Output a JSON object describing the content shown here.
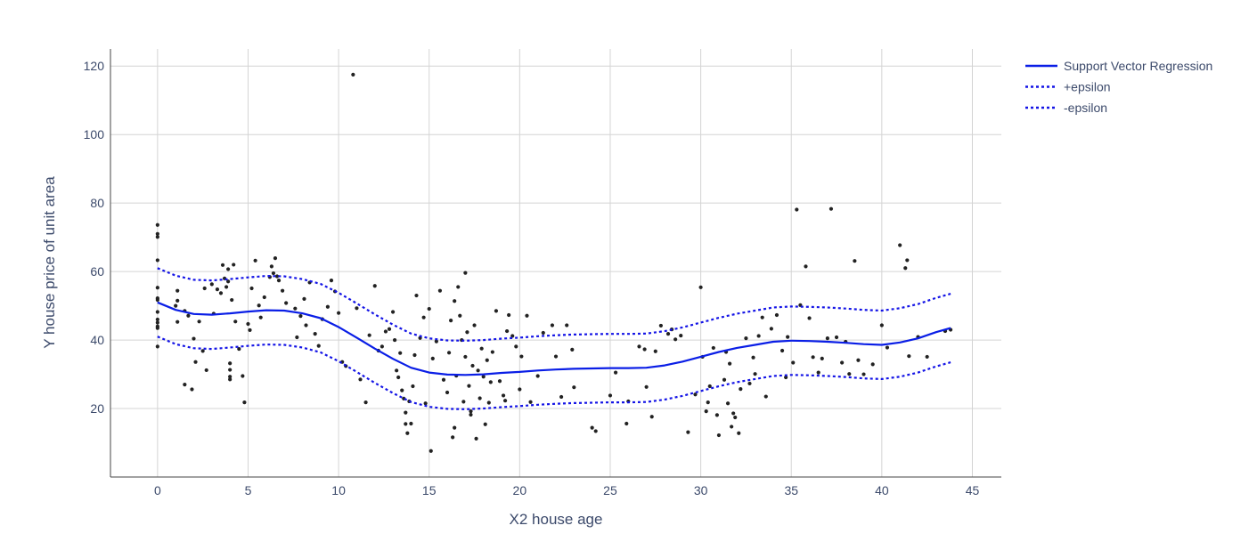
{
  "chart_data": {
    "type": "scatter",
    "xlabel": "X2 house age",
    "ylabel": "Y house price of unit area",
    "xlim": [
      -2.6,
      46.6
    ],
    "ylim": [
      0,
      125
    ],
    "xticks": [
      0,
      5,
      10,
      15,
      20,
      25,
      30,
      35,
      40,
      45
    ],
    "yticks": [
      20,
      40,
      60,
      80,
      100,
      120
    ],
    "grid": true,
    "legend_position": "top-right",
    "colors": {
      "points": "#222222",
      "svr": "#0a1ee6",
      "epsilon": "#1414e6",
      "grid": "#d4d4d4"
    },
    "legend": [
      {
        "label": "Support Vector Regression",
        "style": "solid"
      },
      {
        "label": "+epsilon",
        "style": "dotted"
      },
      {
        "label": "-epsilon",
        "style": "dotted"
      }
    ],
    "series": [
      {
        "name": "Support Vector Regression",
        "x": [
          0,
          1,
          2,
          3,
          4,
          5,
          6,
          7,
          8,
          9,
          10,
          11,
          12,
          13,
          14,
          15,
          16,
          17,
          18,
          19,
          20,
          21,
          22,
          23,
          24,
          25,
          26,
          27,
          28,
          29,
          30,
          31,
          32,
          33,
          34,
          35,
          36,
          37,
          38,
          39,
          40,
          41,
          42,
          43,
          43.8
        ],
        "y": [
          51,
          48.8,
          47.6,
          47.4,
          47.8,
          48.3,
          48.7,
          48.6,
          47.8,
          46.4,
          43.8,
          40.7,
          37.5,
          34.5,
          31.9,
          30.5,
          29.9,
          29.8,
          30,
          30.4,
          30.7,
          31.1,
          31.4,
          31.6,
          31.7,
          31.8,
          31.8,
          31.9,
          32.6,
          33.7,
          35.1,
          36.5,
          37.7,
          38.6,
          39.5,
          39.8,
          39.7,
          39.5,
          39.2,
          38.8,
          38.6,
          39.3,
          40.5,
          42.3,
          43.5
        ]
      },
      {
        "name": "+epsilon",
        "x": [
          0,
          1,
          2,
          3,
          4,
          5,
          6,
          7,
          8,
          9,
          10,
          11,
          12,
          13,
          14,
          15,
          16,
          17,
          18,
          19,
          20,
          21,
          22,
          23,
          24,
          25,
          26,
          27,
          28,
          29,
          30,
          31,
          32,
          33,
          34,
          35,
          36,
          37,
          38,
          39,
          40,
          41,
          42,
          43,
          43.8
        ],
        "y": [
          61,
          58.8,
          57.6,
          57.4,
          57.8,
          58.3,
          58.7,
          58.6,
          57.8,
          56.4,
          53.8,
          50.7,
          47.5,
          44.5,
          41.9,
          40.5,
          39.9,
          39.8,
          40,
          40.4,
          40.7,
          41.1,
          41.4,
          41.6,
          41.7,
          41.8,
          41.8,
          41.9,
          42.6,
          43.7,
          45.1,
          46.5,
          47.7,
          48.6,
          49.5,
          49.8,
          49.7,
          49.5,
          49.2,
          48.8,
          48.6,
          49.3,
          50.5,
          52.3,
          53.5
        ]
      },
      {
        "name": "-epsilon",
        "x": [
          0,
          1,
          2,
          3,
          4,
          5,
          6,
          7,
          8,
          9,
          10,
          11,
          12,
          13,
          14,
          15,
          16,
          17,
          18,
          19,
          20,
          21,
          22,
          23,
          24,
          25,
          26,
          27,
          28,
          29,
          30,
          31,
          32,
          33,
          34,
          35,
          36,
          37,
          38,
          39,
          40,
          41,
          42,
          43,
          43.8
        ],
        "y": [
          41,
          38.8,
          37.6,
          37.4,
          37.8,
          38.3,
          38.7,
          38.6,
          37.8,
          36.4,
          33.8,
          30.7,
          27.5,
          24.5,
          21.9,
          20.5,
          19.9,
          19.8,
          20,
          20.4,
          20.7,
          21.1,
          21.4,
          21.6,
          21.7,
          21.8,
          21.8,
          21.9,
          22.6,
          23.7,
          25.1,
          26.5,
          27.7,
          28.6,
          29.5,
          29.8,
          29.7,
          29.5,
          29.2,
          28.8,
          28.6,
          29.3,
          30.5,
          32.3,
          33.5
        ]
      }
    ],
    "points": [
      [
        0,
        73.6
      ],
      [
        0,
        71
      ],
      [
        0,
        70.1
      ],
      [
        0,
        63.3
      ],
      [
        0,
        55.3
      ],
      [
        0,
        52.2
      ],
      [
        0,
        51.7
      ],
      [
        0,
        48.2
      ],
      [
        0,
        46
      ],
      [
        0,
        45.1
      ],
      [
        0,
        44
      ],
      [
        0,
        43.5
      ],
      [
        0,
        38.1
      ],
      [
        1.1,
        54.4
      ],
      [
        1.1,
        51.5
      ],
      [
        1.1,
        45.3
      ],
      [
        1,
        50
      ],
      [
        1.5,
        48.5
      ],
      [
        1.7,
        47.1
      ],
      [
        1.5,
        27
      ],
      [
        1.9,
        25.6
      ],
      [
        2,
        40.4
      ],
      [
        2.1,
        33.6
      ],
      [
        2.3,
        45.4
      ],
      [
        2.6,
        55.1
      ],
      [
        2.7,
        31.2
      ],
      [
        2.5,
        36.8
      ],
      [
        3,
        56.3
      ],
      [
        3.1,
        47.7
      ],
      [
        3.3,
        54.8
      ],
      [
        3.5,
        53.7
      ],
      [
        3.6,
        61.9
      ],
      [
        3.7,
        58
      ],
      [
        3.8,
        55.5
      ],
      [
        3.9,
        60.7
      ],
      [
        3.9,
        57.1
      ],
      [
        4,
        33.2
      ],
      [
        4,
        31.3
      ],
      [
        4,
        29.3
      ],
      [
        4,
        28.5
      ],
      [
        4.2,
        62
      ],
      [
        4.1,
        51.7
      ],
      [
        4.3,
        45.4
      ],
      [
        4.5,
        37.4
      ],
      [
        4.7,
        29.5
      ],
      [
        5,
        44.7
      ],
      [
        4.8,
        21.8
      ],
      [
        5.1,
        42.9
      ],
      [
        5.2,
        55.1
      ],
      [
        5.4,
        63.2
      ],
      [
        5.6,
        50.1
      ],
      [
        5.7,
        46.6
      ],
      [
        5.9,
        52.5
      ],
      [
        6.2,
        58.4
      ],
      [
        6.3,
        61.5
      ],
      [
        6.4,
        59.5
      ],
      [
        6.5,
        63.9
      ],
      [
        6.6,
        58.6
      ],
      [
        6.7,
        57.4
      ],
      [
        6.9,
        54.4
      ],
      [
        7.1,
        50.8
      ],
      [
        7.6,
        49.2
      ],
      [
        7.7,
        40.8
      ],
      [
        7.9,
        47
      ],
      [
        8.1,
        52
      ],
      [
        8.2,
        44.3
      ],
      [
        8.4,
        56.8
      ],
      [
        8.7,
        41.8
      ],
      [
        8.9,
        38.3
      ],
      [
        9.1,
        46.1
      ],
      [
        9.4,
        49.7
      ],
      [
        9.6,
        57.4
      ],
      [
        9.8,
        54.2
      ],
      [
        10,
        47.9
      ],
      [
        10.2,
        33.6
      ],
      [
        10.4,
        32.4
      ],
      [
        10.8,
        117.5
      ],
      [
        11,
        49.3
      ],
      [
        11.2,
        28.5
      ],
      [
        11.5,
        21.8
      ],
      [
        11.7,
        41.4
      ],
      [
        12,
        55.8
      ],
      [
        12.2,
        36.9
      ],
      [
        12.4,
        38.1
      ],
      [
        12.6,
        42.5
      ],
      [
        12.8,
        43.2
      ],
      [
        13,
        48.2
      ],
      [
        13.1,
        40
      ],
      [
        13.2,
        31.1
      ],
      [
        13.3,
        29.1
      ],
      [
        13.4,
        36.2
      ],
      [
        13.5,
        25.3
      ],
      [
        13.6,
        22.9
      ],
      [
        13.7,
        18.8
      ],
      [
        13.7,
        15.5
      ],
      [
        13.8,
        12.8
      ],
      [
        13.9,
        22.1
      ],
      [
        14,
        15.6
      ],
      [
        14.1,
        26.5
      ],
      [
        14.2,
        35.6
      ],
      [
        14.3,
        53
      ],
      [
        14.5,
        40.6
      ],
      [
        14.7,
        46.6
      ],
      [
        14.8,
        21.5
      ],
      [
        15,
        49.1
      ],
      [
        15.1,
        7.6
      ],
      [
        15.2,
        34.6
      ],
      [
        15.4,
        39.6
      ],
      [
        15.6,
        54.4
      ],
      [
        15.8,
        28.4
      ],
      [
        16,
        24.7
      ],
      [
        16.1,
        36.3
      ],
      [
        16.2,
        45.7
      ],
      [
        16.3,
        11.6
      ],
      [
        16.4,
        51.4
      ],
      [
        16.4,
        14.4
      ],
      [
        16.5,
        29.6
      ],
      [
        16.6,
        55.5
      ],
      [
        16.7,
        47.1
      ],
      [
        16.8,
        40
      ],
      [
        16.9,
        22
      ],
      [
        17,
        35.1
      ],
      [
        17,
        59.6
      ],
      [
        17.1,
        42.3
      ],
      [
        17.2,
        26.6
      ],
      [
        17.3,
        19.2
      ],
      [
        17.3,
        18.2
      ],
      [
        17.4,
        32.5
      ],
      [
        17.5,
        44.3
      ],
      [
        17.6,
        11.2
      ],
      [
        17.7,
        31.1
      ],
      [
        17.8,
        23
      ],
      [
        17.9,
        37.5
      ],
      [
        18,
        29.3
      ],
      [
        18.1,
        15.4
      ],
      [
        18.2,
        34.1
      ],
      [
        18.3,
        21.7
      ],
      [
        18.4,
        27.7
      ],
      [
        18.5,
        36.5
      ],
      [
        18.7,
        48.5
      ],
      [
        18.9,
        28
      ],
      [
        19.1,
        23.8
      ],
      [
        19.2,
        22.3
      ],
      [
        19.3,
        42.6
      ],
      [
        19.4,
        47.3
      ],
      [
        19.6,
        41.2
      ],
      [
        19.8,
        38.1
      ],
      [
        20,
        25.6
      ],
      [
        20.1,
        35.2
      ],
      [
        20.4,
        47.1
      ],
      [
        20.6,
        21.9
      ],
      [
        21,
        29.5
      ],
      [
        21.3,
        42.1
      ],
      [
        21.8,
        44.3
      ],
      [
        22,
        35.2
      ],
      [
        22.3,
        23.4
      ],
      [
        22.6,
        44.3
      ],
      [
        22.9,
        37.2
      ],
      [
        23,
        26.2
      ],
      [
        24,
        14.4
      ],
      [
        24.2,
        13.4
      ],
      [
        25,
        23.8
      ],
      [
        25.3,
        30.5
      ],
      [
        25.9,
        15.6
      ],
      [
        26,
        22.1
      ],
      [
        26.6,
        38.1
      ],
      [
        26.9,
        37.3
      ],
      [
        27,
        26.3
      ],
      [
        27.3,
        17.6
      ],
      [
        27.5,
        36.7
      ],
      [
        27.8,
        44.2
      ],
      [
        28.2,
        41.8
      ],
      [
        28.4,
        43.1
      ],
      [
        28.6,
        40.2
      ],
      [
        28.9,
        41.3
      ],
      [
        29.3,
        13.1
      ],
      [
        29.7,
        24.1
      ],
      [
        30,
        55.4
      ],
      [
        30.1,
        35.1
      ],
      [
        30.3,
        19.2
      ],
      [
        30.4,
        21.8
      ],
      [
        30.5,
        26.5
      ],
      [
        30.7,
        37.7
      ],
      [
        30.9,
        18.1
      ],
      [
        31,
        12.2
      ],
      [
        31.3,
        28.4
      ],
      [
        31.4,
        36.5
      ],
      [
        31.5,
        21.5
      ],
      [
        31.6,
        33.1
      ],
      [
        31.7,
        14.7
      ],
      [
        31.8,
        18.6
      ],
      [
        31.9,
        17.4
      ],
      [
        32.1,
        12.8
      ],
      [
        32.2,
        25.7
      ],
      [
        32.5,
        40.5
      ],
      [
        32.7,
        27.3
      ],
      [
        32.9,
        34.9
      ],
      [
        33,
        30.1
      ],
      [
        33.2,
        41.2
      ],
      [
        33.4,
        46.6
      ],
      [
        33.6,
        23.5
      ],
      [
        33.9,
        43.3
      ],
      [
        34.2,
        47.3
      ],
      [
        34.5,
        36.9
      ],
      [
        34.7,
        29.1
      ],
      [
        34.8,
        40.9
      ],
      [
        35.1,
        33.4
      ],
      [
        35.3,
        78.1
      ],
      [
        35.5,
        50.2
      ],
      [
        35.8,
        61.5
      ],
      [
        36,
        46.4
      ],
      [
        36.2,
        35
      ],
      [
        36.5,
        30.5
      ],
      [
        36.7,
        34.6
      ],
      [
        37,
        40.5
      ],
      [
        37.2,
        78.3
      ],
      [
        37.5,
        40.8
      ],
      [
        37.8,
        33.4
      ],
      [
        38,
        39.5
      ],
      [
        38.2,
        30.1
      ],
      [
        38.5,
        63.1
      ],
      [
        38.7,
        34.1
      ],
      [
        39,
        30
      ],
      [
        39.5,
        32.9
      ],
      [
        40,
        44.3
      ],
      [
        40.3,
        37.8
      ],
      [
        41,
        67.7
      ],
      [
        41.3,
        61
      ],
      [
        41.4,
        63.3
      ],
      [
        41.5,
        35.3
      ],
      [
        42,
        40.9
      ],
      [
        42.5,
        35.1
      ],
      [
        43.5,
        42.6
      ],
      [
        43.8,
        43
      ]
    ]
  }
}
